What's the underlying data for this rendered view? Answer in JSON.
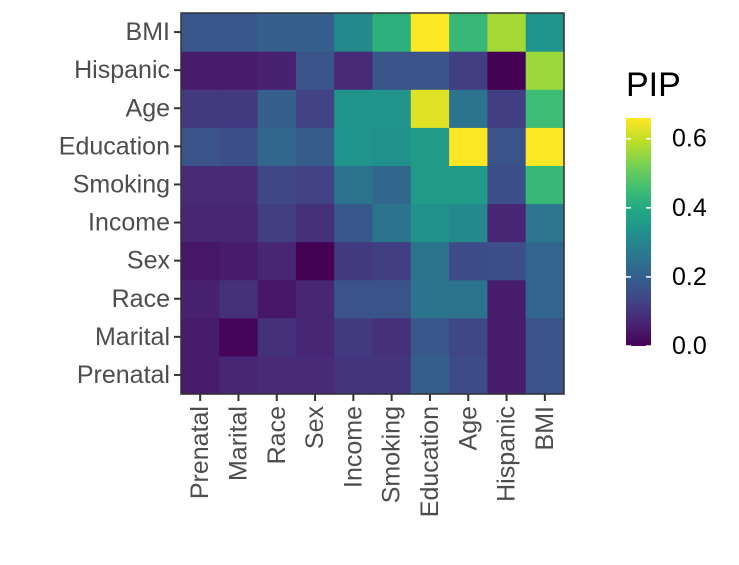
{
  "chart_data": {
    "type": "heatmap",
    "x_categories": [
      "Prenatal",
      "Marital",
      "Race",
      "Sex",
      "Income",
      "Smoking",
      "Education",
      "Age",
      "Hispanic",
      "BMI"
    ],
    "y_categories": [
      "Prenatal",
      "Marital",
      "Race",
      "Sex",
      "Income",
      "Smoking",
      "Education",
      "Age",
      "Hispanic",
      "BMI"
    ],
    "values": [
      [
        0.05,
        0.07,
        0.08,
        0.08,
        0.1,
        0.1,
        0.2,
        0.15,
        0.05,
        0.17
      ],
      [
        0.05,
        0.01,
        0.09,
        0.07,
        0.11,
        0.09,
        0.18,
        0.14,
        0.05,
        0.17
      ],
      [
        0.06,
        0.09,
        0.04,
        0.07,
        0.17,
        0.17,
        0.25,
        0.25,
        0.05,
        0.21
      ],
      [
        0.04,
        0.05,
        0.07,
        0.0,
        0.11,
        0.12,
        0.25,
        0.15,
        0.16,
        0.21
      ],
      [
        0.07,
        0.07,
        0.12,
        0.09,
        0.18,
        0.25,
        0.33,
        0.31,
        0.07,
        0.26
      ],
      [
        0.08,
        0.08,
        0.14,
        0.13,
        0.25,
        0.22,
        0.36,
        0.36,
        0.16,
        0.44
      ],
      [
        0.17,
        0.16,
        0.22,
        0.19,
        0.34,
        0.33,
        0.36,
        0.66,
        0.17,
        0.66
      ],
      [
        0.11,
        0.11,
        0.2,
        0.13,
        0.34,
        0.34,
        0.63,
        0.25,
        0.12,
        0.45
      ],
      [
        0.05,
        0.05,
        0.06,
        0.17,
        0.08,
        0.17,
        0.17,
        0.12,
        0.0,
        0.56
      ],
      [
        0.18,
        0.18,
        0.2,
        0.2,
        0.31,
        0.42,
        0.66,
        0.44,
        0.57,
        0.34
      ]
    ],
    "x_axis_title": "",
    "y_axis_title": "",
    "legend": {
      "title": "PIP",
      "range": [
        0,
        0.66
      ],
      "ticks": [
        0,
        0.2,
        0.4,
        0.6
      ],
      "tick_labels": [
        "0.0",
        "0.2",
        "0.4",
        "0.6"
      ],
      "colormap": "viridis",
      "placement": "right"
    }
  }
}
